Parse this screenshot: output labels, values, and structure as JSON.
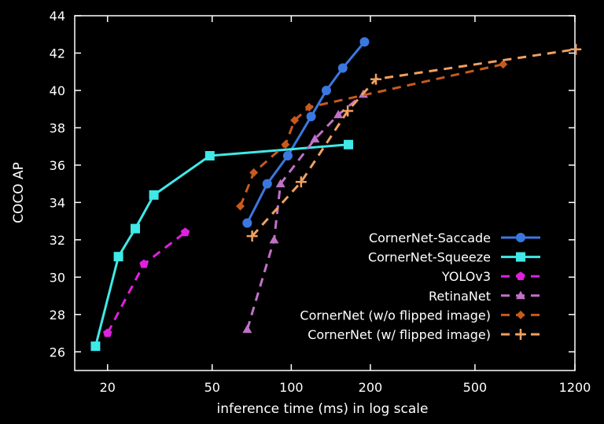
{
  "chart_data": {
    "type": "line",
    "title": "",
    "xlabel": "inference time (ms) in log scale",
    "ylabel": "COCO AP",
    "xscale": "log",
    "xlim": [
      15,
      1200
    ],
    "ylim": [
      25,
      44
    ],
    "xticks": [
      20,
      50,
      100,
      200,
      500,
      1200
    ],
    "xtick_labels": [
      "20",
      "50",
      "100",
      "200",
      "500",
      "1200"
    ],
    "yticks": [
      26,
      28,
      30,
      32,
      34,
      36,
      38,
      40,
      42,
      44
    ],
    "ytick_labels": [
      "26",
      "28",
      "30",
      "32",
      "34",
      "36",
      "38",
      "40",
      "42",
      "44"
    ],
    "grid": false,
    "legend_position": "bottom-right",
    "series": [
      {
        "name": "CornerNet-Saccade",
        "color": "#3a78e0",
        "line": "solid",
        "marker": "circle",
        "points": [
          [
            68,
            32.9
          ],
          [
            81,
            35.0
          ],
          [
            97,
            36.5
          ],
          [
            119,
            38.6
          ],
          [
            136,
            40.0
          ],
          [
            157,
            41.2
          ],
          [
            190,
            42.6
          ]
        ]
      },
      {
        "name": "CornerNet-Squeeze",
        "color": "#40e8e8",
        "line": "solid",
        "marker": "square",
        "points": [
          [
            18,
            26.3
          ],
          [
            22,
            31.1
          ],
          [
            25.5,
            32.6
          ],
          [
            30,
            34.4
          ],
          [
            49,
            36.5
          ],
          [
            165,
            37.1
          ]
        ]
      },
      {
        "name": "YOLOv3",
        "color": "#e020e0",
        "line": "dashed",
        "marker": "pentagon",
        "points": [
          [
            20,
            27.0
          ],
          [
            27.5,
            30.7
          ],
          [
            39.5,
            32.4
          ]
        ]
      },
      {
        "name": "RetinaNet",
        "color": "#c071c8",
        "line": "dashed",
        "marker": "triangle",
        "points": [
          [
            68,
            27.2
          ],
          [
            86,
            32.0
          ],
          [
            91,
            35.0
          ],
          [
            123,
            37.4
          ],
          [
            151,
            38.7
          ],
          [
            188,
            39.8
          ]
        ]
      },
      {
        "name": "CornerNet (w/o flipped image)",
        "color": "#c85a1e",
        "line": "dashed",
        "marker": "diamond",
        "points": [
          [
            64,
            33.8
          ],
          [
            72,
            35.6
          ],
          [
            95,
            37.1
          ],
          [
            103,
            38.4
          ],
          [
            117,
            39.1
          ],
          [
            640,
            41.4
          ]
        ]
      },
      {
        "name": "CornerNet (w/ flipped image)",
        "color": "#f0a060",
        "line": "dashed",
        "marker": "plus",
        "points": [
          [
            71,
            32.2
          ],
          [
            109,
            35.1
          ],
          [
            164,
            38.9
          ],
          [
            210,
            40.6
          ],
          [
            1210,
            42.2
          ]
        ]
      }
    ]
  }
}
